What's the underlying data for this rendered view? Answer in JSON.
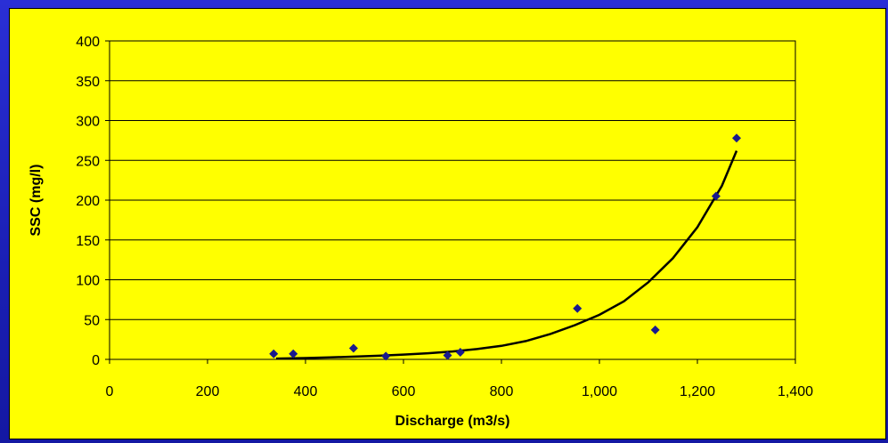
{
  "chart_data": {
    "type": "scatter",
    "title": "",
    "xlabel": "Discharge (m3/s)",
    "ylabel": "SSC (mg/l)",
    "xlim": [
      0,
      1400
    ],
    "ylim": [
      0,
      400
    ],
    "x_ticks": [
      0,
      200,
      400,
      600,
      800,
      1000,
      1200,
      1400
    ],
    "x_tick_labels": [
      "0",
      "200",
      "400",
      "600",
      "800",
      "1,000",
      "1,200",
      "1,400"
    ],
    "y_ticks": [
      0,
      50,
      100,
      150,
      200,
      250,
      300,
      350,
      400
    ],
    "y_tick_labels": [
      "0",
      "50",
      "100",
      "150",
      "200",
      "250",
      "300",
      "350",
      "400"
    ],
    "grid": "horizontal",
    "legend": "none",
    "series": [
      {
        "type": "scatter",
        "marker": "diamond",
        "color": "#1a1a8c",
        "points": [
          {
            "x": 335,
            "y": 7
          },
          {
            "x": 375,
            "y": 7
          },
          {
            "x": 498,
            "y": 14
          },
          {
            "x": 564,
            "y": 4
          },
          {
            "x": 690,
            "y": 5
          },
          {
            "x": 716,
            "y": 9
          },
          {
            "x": 955,
            "y": 64
          },
          {
            "x": 1114,
            "y": 37
          },
          {
            "x": 1238,
            "y": 205
          },
          {
            "x": 1280,
            "y": 278
          }
        ]
      },
      {
        "type": "line",
        "role": "trendline",
        "color": "#000000",
        "points": [
          {
            "x": 340,
            "y": 1
          },
          {
            "x": 400,
            "y": 1.7
          },
          {
            "x": 450,
            "y": 2.5
          },
          {
            "x": 500,
            "y": 3.5
          },
          {
            "x": 550,
            "y": 4.6
          },
          {
            "x": 600,
            "y": 6
          },
          {
            "x": 650,
            "y": 7.7
          },
          {
            "x": 700,
            "y": 10
          },
          {
            "x": 750,
            "y": 13
          },
          {
            "x": 800,
            "y": 17
          },
          {
            "x": 850,
            "y": 23
          },
          {
            "x": 900,
            "y": 32
          },
          {
            "x": 950,
            "y": 43
          },
          {
            "x": 1000,
            "y": 56
          },
          {
            "x": 1050,
            "y": 73
          },
          {
            "x": 1100,
            "y": 97
          },
          {
            "x": 1150,
            "y": 127
          },
          {
            "x": 1200,
            "y": 166
          },
          {
            "x": 1250,
            "y": 218
          },
          {
            "x": 1280,
            "y": 262
          }
        ]
      }
    ],
    "colors": {
      "background_outer": "#1c20b8",
      "plot_background": "#ffff00",
      "marker": "#1a1a8c",
      "trendline": "#000000",
      "gridline": "#000000"
    }
  }
}
